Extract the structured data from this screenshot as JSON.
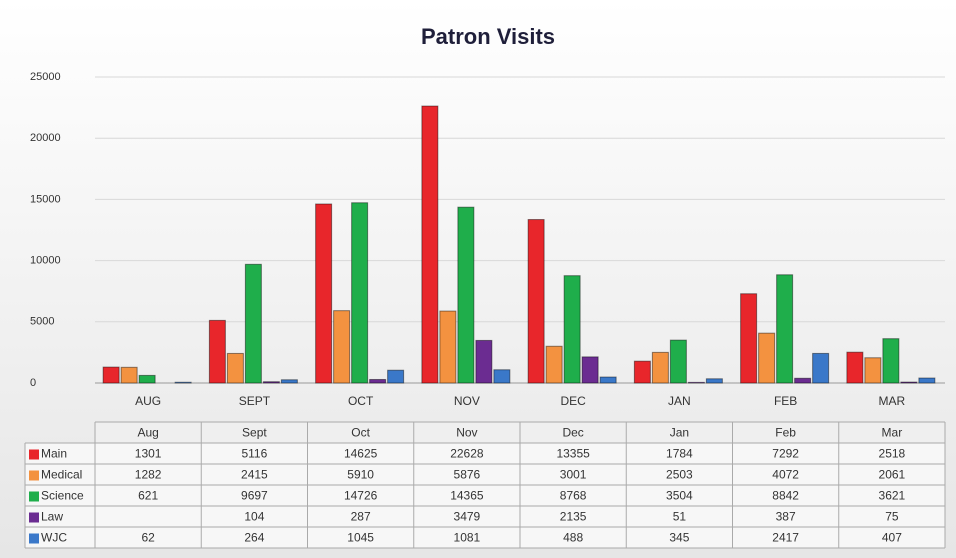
{
  "chart_data": {
    "type": "bar",
    "title": "Patron Visits",
    "categories": [
      "AUG",
      "SEPT",
      "OCT",
      "NOV",
      "DEC",
      "JAN",
      "FEB",
      "MAR"
    ],
    "table_columns": [
      "Aug",
      "Sept",
      "Oct",
      "Nov",
      "Dec",
      "Jan",
      "Feb",
      "Mar"
    ],
    "series": [
      {
        "name": "Main",
        "color": "#e8262b",
        "values": [
          1301,
          5116,
          14625,
          22628,
          13355,
          1784,
          7292,
          2518
        ]
      },
      {
        "name": "Medical",
        "color": "#f39240",
        "values": [
          1282,
          2415,
          5910,
          5876,
          3001,
          2503,
          4072,
          2061
        ]
      },
      {
        "name": "Science",
        "color": "#1fae4b",
        "values": [
          621,
          9697,
          14726,
          14365,
          8768,
          3504,
          8842,
          3621
        ]
      },
      {
        "name": "Law",
        "color": "#6b2c91",
        "values": [
          null,
          104,
          287,
          3479,
          2135,
          51,
          387,
          75
        ]
      },
      {
        "name": "WJC",
        "color": "#3a78c9",
        "values": [
          62,
          264,
          1045,
          1081,
          488,
          345,
          2417,
          407
        ]
      }
    ],
    "ylim": [
      0,
      25000
    ],
    "yticks": [
      0,
      5000,
      10000,
      15000,
      20000,
      25000
    ],
    "grid": true
  }
}
